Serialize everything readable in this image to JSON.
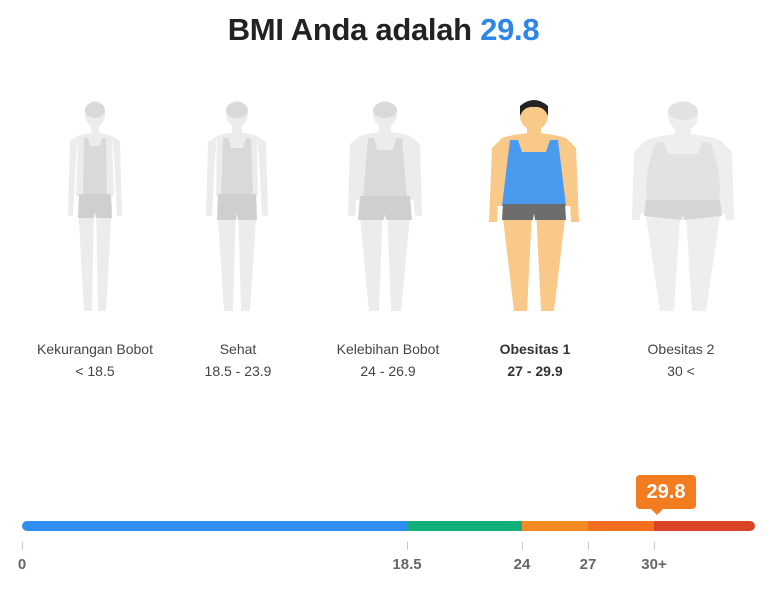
{
  "title": {
    "prefix": "BMI Anda adalah",
    "value": "29.8"
  },
  "categories": [
    {
      "name": "Kekurangan Bobot",
      "range": "< 18.5",
      "active": false
    },
    {
      "name": "Sehat",
      "range": "18.5 - 23.9",
      "active": false
    },
    {
      "name": "Kelebihan Bobot",
      "range": "24 - 26.9",
      "active": false
    },
    {
      "name": "Obesitas 1",
      "range": "27 - 29.9",
      "active": true
    },
    {
      "name": "Obesitas 2",
      "range": "30 <",
      "active": false
    }
  ],
  "scale": {
    "marker": {
      "value": 29.8,
      "label": "29.8"
    },
    "tick_labels": [
      "0",
      "18.5",
      "24",
      "27",
      "30+"
    ],
    "segments": [
      {
        "from": 0,
        "to": 18.5,
        "color": "#2e8ff0"
      },
      {
        "from": 18.5,
        "to": 24,
        "color": "#11b07a"
      },
      {
        "from": 24,
        "to": 27,
        "color": "#f58a25"
      },
      {
        "from": 27,
        "to": 30,
        "color": "#f26f1f"
      },
      {
        "from": 30,
        "to": 35,
        "color": "#d94326"
      }
    ]
  },
  "colors": {
    "accent": "#2e86e8",
    "marker": "#f47c20",
    "inactive_figure": "#e8e8e8",
    "skin": "#f9c98a",
    "shirt": "#4a9bef",
    "shorts": "#6d6d6d"
  }
}
